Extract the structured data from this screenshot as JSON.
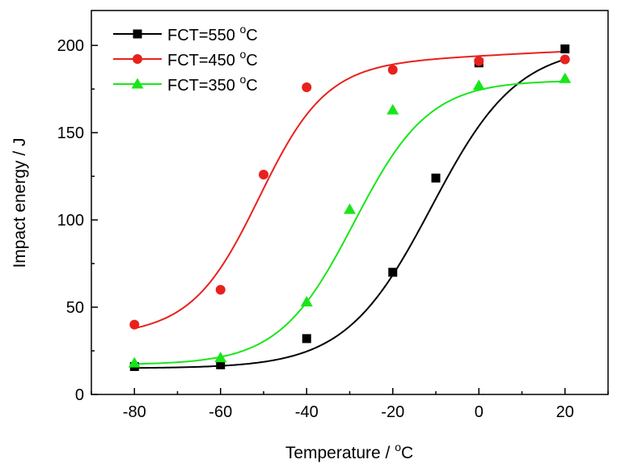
{
  "chart_data": {
    "type": "scatter",
    "title": "",
    "xlabel": "Temperature / ",
    "xlabel_unit": "C",
    "xlabel_sup": "o",
    "ylabel": "Impact energy / J",
    "xlim": [
      -90,
      30
    ],
    "ylim": [
      0,
      220
    ],
    "xticks": [
      -80,
      -60,
      -40,
      -20,
      0,
      20
    ],
    "yticks": [
      0,
      50,
      100,
      150,
      200
    ],
    "grid": false,
    "legend_position": "top-left",
    "series": [
      {
        "name": "FCT=550 ",
        "name_sup": "o",
        "name_unit": "C",
        "color": "#000000",
        "marker": "square",
        "x": [
          -80,
          -60,
          -40,
          -20,
          -10,
          0,
          20
        ],
        "y": [
          16,
          17,
          32,
          70,
          124,
          190,
          198
        ],
        "fit": {
          "lower": 15,
          "upper": 200,
          "x0": -11,
          "k": 0.1
        }
      },
      {
        "name": "FCT=450 ",
        "name_sup": "o",
        "name_unit": "C",
        "color": "#e8211d",
        "marker": "circle",
        "x": [
          -80,
          -60,
          -50,
          -40,
          -20,
          0,
          20
        ],
        "y": [
          40,
          60,
          126,
          176,
          186,
          191,
          192
        ],
        "fit": {
          "lower": 38,
          "upper": 188,
          "x0": -51,
          "k": 0.13,
          "slope": 0.12
        }
      },
      {
        "name": "FCT=350 ",
        "name_sup": "o",
        "name_unit": "C",
        "color": "#19e619",
        "marker": "triangle",
        "x": [
          -80,
          -60,
          -40,
          -30,
          -20,
          0,
          20
        ],
        "y": [
          18,
          21,
          53,
          106,
          163,
          177,
          181
        ],
        "fit": {
          "lower": 17,
          "upper": 180,
          "x0": -29,
          "k": 0.115
        }
      }
    ]
  }
}
